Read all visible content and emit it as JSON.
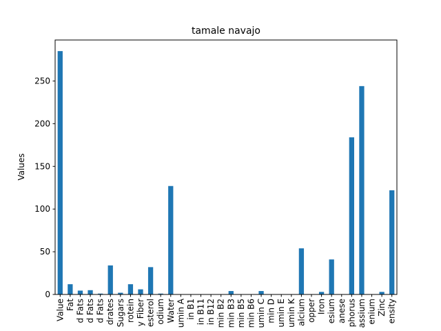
{
  "chart_data": {
    "type": "bar",
    "title": "tamale navajo",
    "xlabel": "",
    "ylabel": "Values",
    "ylim": [
      0,
      298
    ],
    "yticks": [
      0,
      50,
      100,
      150,
      200,
      250
    ],
    "grid": false,
    "legend": "none",
    "bar_color": "#1f77b4",
    "categories": [
      "Value",
      "Fat",
      "d Fats",
      "d Fats",
      "d Fats",
      "drates",
      "Sugars",
      "rotein",
      "y Fiber",
      "esterol",
      "odium",
      "Water",
      "umin A",
      "in B1",
      "in B11",
      "in B12",
      "min B2",
      "min B3",
      "min B5",
      "min B6",
      "umin C",
      "min D",
      "umin E",
      "umin K",
      "alcium",
      "opper",
      "Iron",
      "esium",
      "anese",
      "phorus",
      "assium",
      "enium",
      "Zinc",
      "ensity"
    ],
    "values": [
      285,
      12,
      4.5,
      5,
      1,
      34,
      2,
      12,
      6,
      32,
      1,
      127,
      0,
      0,
      0,
      0,
      0,
      4,
      0,
      0,
      4,
      0,
      0,
      0,
      54,
      0,
      3,
      41,
      0,
      184,
      244,
      0,
      3,
      122
    ]
  }
}
